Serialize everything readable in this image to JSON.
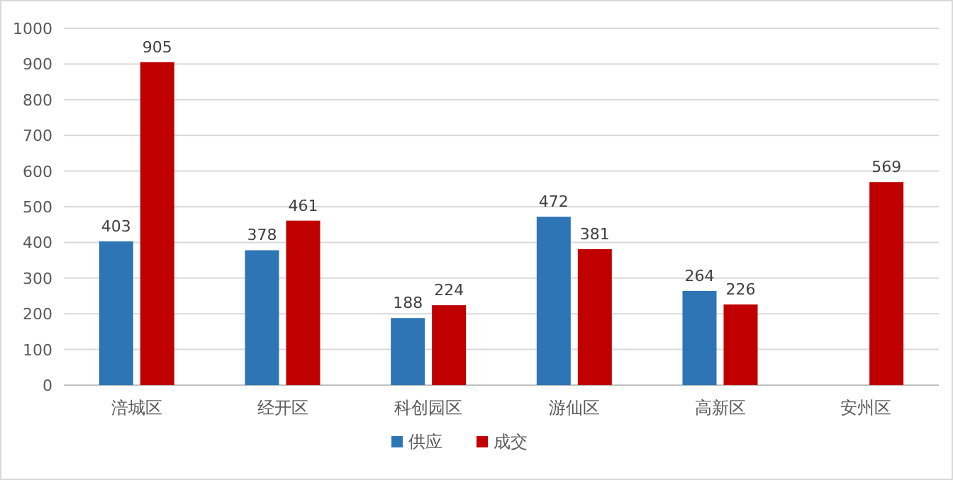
{
  "chart_data": {
    "type": "bar",
    "categories": [
      "涪城区",
      "经开区",
      "科创园区",
      "游仙区",
      "高新区",
      "安州区"
    ],
    "series": [
      {
        "name": "供应",
        "color": "#2e75b6",
        "values": [
          403,
          378,
          188,
          472,
          264,
          null
        ]
      },
      {
        "name": "成交",
        "color": "#c00000",
        "values": [
          905,
          461,
          224,
          381,
          226,
          569
        ]
      }
    ],
    "ylim": [
      0,
      1000
    ],
    "yticks": [
      0,
      100,
      200,
      300,
      400,
      500,
      600,
      700,
      800,
      900,
      1000
    ],
    "grid": "y",
    "legend": "bottom",
    "data_labels": true
  }
}
